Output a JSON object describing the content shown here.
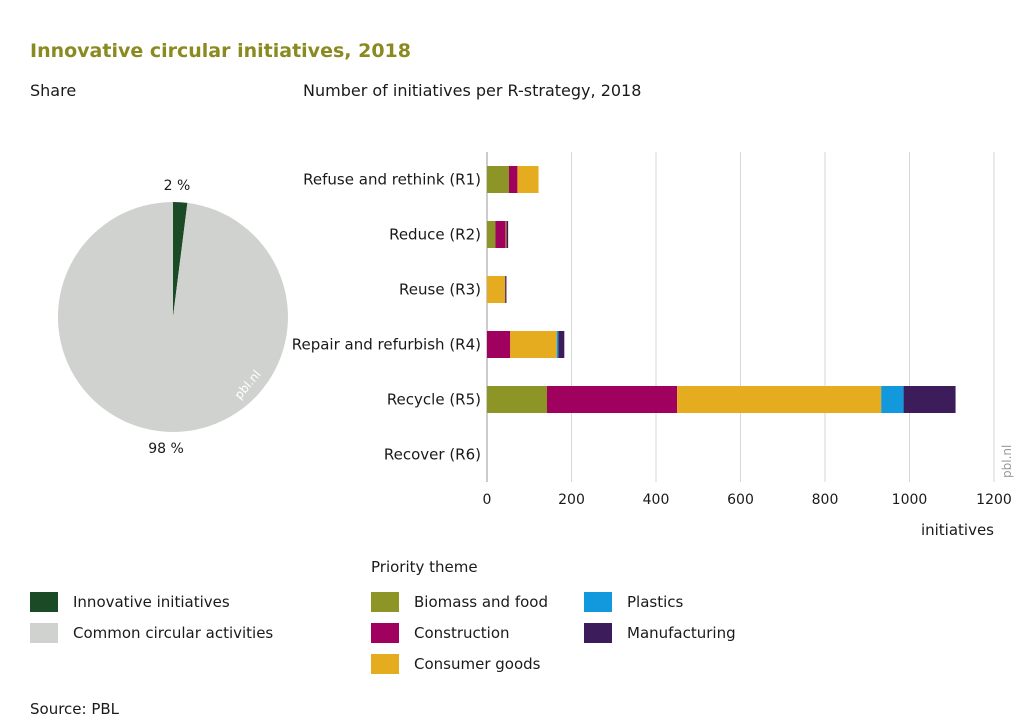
{
  "title": "Innovative circular initiatives, 2018",
  "pie_subtitle": "Share",
  "bar_subtitle": "Number of initiatives per R-strategy, 2018",
  "watermark": "pbl.nl",
  "source": "Source: PBL",
  "colors": {
    "innovative": "#1a4a26",
    "common": "#d0d2cf",
    "biomass": "#8c9526",
    "construction": "#a0005e",
    "consumer": "#e6ac1f",
    "plastics": "#1298dc",
    "manufacturing": "#3c1c5a"
  },
  "pie_legend": [
    {
      "label": "Innovative initiatives",
      "color_key": "innovative"
    },
    {
      "label": "Common circular activities",
      "color_key": "common"
    }
  ],
  "theme_legend_title": "Priority theme",
  "theme_legend": [
    {
      "label": "Biomass and food",
      "color_key": "biomass"
    },
    {
      "label": "Construction",
      "color_key": "construction"
    },
    {
      "label": "Consumer goods",
      "color_key": "consumer"
    },
    {
      "label": "Plastics",
      "color_key": "plastics"
    },
    {
      "label": "Manufacturing",
      "color_key": "manufacturing"
    }
  ],
  "chart_data": [
    {
      "type": "pie",
      "title": "Share",
      "slices": [
        {
          "label": "Innovative initiatives",
          "value": 2,
          "display": "2 %",
          "color_key": "innovative"
        },
        {
          "label": "Common circular activities",
          "value": 98,
          "display": "98 %",
          "color_key": "common"
        }
      ]
    },
    {
      "type": "bar",
      "orientation": "horizontal",
      "stacked": true,
      "title": "Number of initiatives per R-strategy, 2018",
      "xlabel": "initiatives",
      "xlim": [
        0,
        1200
      ],
      "xticks": [
        "0",
        "200",
        "400",
        "600",
        "800",
        "1000",
        "1200"
      ],
      "grid": true,
      "categories": [
        "Refuse and rethink (R1)",
        "Reduce (R2)",
        "Reuse (R3)",
        "Repair and refurbish (R4)",
        "Recycle (R5)",
        "Recover (R6)"
      ],
      "series": [
        {
          "name": "Biomass and food",
          "color_key": "biomass",
          "values": [
            52,
            20,
            0,
            0,
            142,
            0
          ]
        },
        {
          "name": "Construction",
          "color_key": "construction",
          "values": [
            20,
            24,
            0,
            55,
            308,
            0
          ]
        },
        {
          "name": "Consumer goods",
          "color_key": "consumer",
          "values": [
            50,
            2,
            43,
            110,
            483,
            0
          ]
        },
        {
          "name": "Plastics",
          "color_key": "plastics",
          "values": [
            0,
            0,
            0,
            4,
            53,
            0
          ]
        },
        {
          "name": "Manufacturing",
          "color_key": "manufacturing",
          "values": [
            0,
            4,
            3,
            14,
            123,
            0
          ]
        }
      ]
    }
  ]
}
